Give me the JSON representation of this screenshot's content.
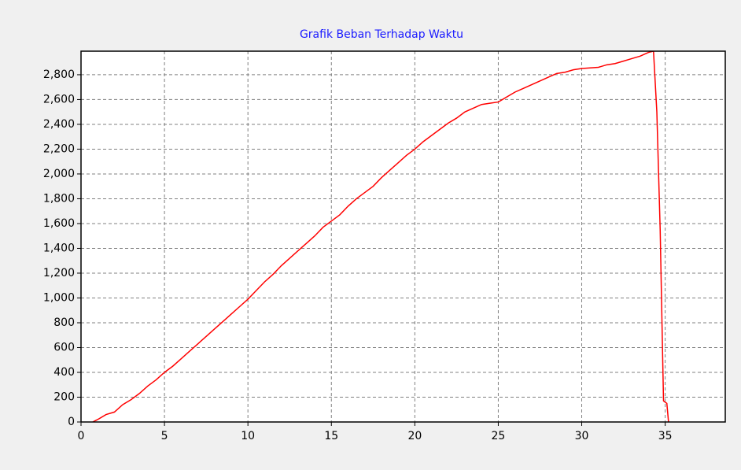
{
  "chart_data": {
    "type": "line",
    "title": "Grafik Beban Terhadap Waktu",
    "x": [
      0.7,
      1,
      1.5,
      2,
      2.5,
      3,
      3.5,
      4,
      4.5,
      5,
      5.5,
      6,
      6.5,
      7,
      7.5,
      8,
      8.5,
      9,
      9.5,
      10,
      10.5,
      11,
      11.5,
      12,
      12.5,
      13,
      13.5,
      14,
      14.5,
      15,
      15.5,
      16,
      16.5,
      17,
      17.5,
      18,
      18.5,
      19,
      19.5,
      20,
      20.5,
      21,
      21.5,
      22,
      22.5,
      23,
      23.5,
      24,
      24.5,
      25,
      25.5,
      26,
      26.5,
      27,
      27.5,
      28,
      28.5,
      29,
      29.5,
      30,
      31,
      31.5,
      32,
      32.5,
      33,
      33.5,
      34,
      34.3,
      34.5,
      34.7,
      34.9,
      35.1,
      35.2
    ],
    "values": [
      0,
      20,
      60,
      80,
      140,
      180,
      230,
      290,
      340,
      400,
      450,
      510,
      570,
      630,
      690,
      750,
      810,
      870,
      930,
      990,
      1060,
      1130,
      1190,
      1260,
      1320,
      1380,
      1440,
      1500,
      1570,
      1620,
      1670,
      1740,
      1800,
      1850,
      1900,
      1970,
      2030,
      2090,
      2150,
      2200,
      2260,
      2310,
      2360,
      2410,
      2450,
      2500,
      2530,
      2560,
      2570,
      2580,
      2620,
      2660,
      2690,
      2720,
      2750,
      2780,
      2810,
      2820,
      2840,
      2850,
      2860,
      2880,
      2890,
      2910,
      2930,
      2950,
      2980,
      2990,
      2500,
      1550,
      170,
      150,
      0
    ],
    "color": "#ff0000",
    "xlim": [
      0,
      38.6
    ],
    "xticks": [
      0,
      5,
      10,
      15,
      20,
      25,
      30,
      35
    ],
    "ylim": [
      0,
      2990
    ],
    "yticks": [
      0,
      200,
      400,
      600,
      800,
      {
        "value": 1000,
        "label": "1,000"
      },
      {
        "value": 1200,
        "label": "1,200"
      },
      {
        "value": 1400,
        "label": "1,400"
      },
      {
        "value": 1600,
        "label": "1,600"
      },
      {
        "value": 1800,
        "label": "1,800"
      },
      {
        "value": 2000,
        "label": "2,000"
      },
      {
        "value": 2200,
        "label": "2,200"
      },
      {
        "value": 2400,
        "label": "2,400"
      },
      {
        "value": 2600,
        "label": "2,600"
      },
      {
        "value": 2800,
        "label": "2,800"
      }
    ],
    "grid": true
  }
}
